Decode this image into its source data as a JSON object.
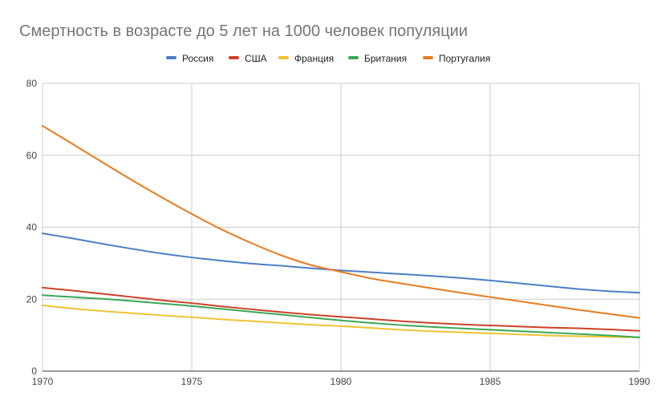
{
  "chart_data": {
    "type": "line",
    "title": "Смертность в возрасте до 5 лет на 1000 человек популяции",
    "xlabel": "",
    "ylabel": "",
    "x": [
      1970,
      1971,
      1972,
      1973,
      1974,
      1975,
      1976,
      1977,
      1978,
      1979,
      1980,
      1981,
      1982,
      1983,
      1984,
      1985,
      1986,
      1987,
      1988,
      1989,
      1990
    ],
    "xticks": [
      "1970",
      "1975",
      "1980",
      "1985",
      "1990"
    ],
    "xtick_values": [
      1970,
      1975,
      1980,
      1985,
      1990
    ],
    "yticks": [
      "0",
      "20",
      "40",
      "60",
      "80"
    ],
    "ytick_values": [
      0,
      20,
      40,
      60,
      80
    ],
    "xlim": [
      1970,
      1990
    ],
    "ylim": [
      0,
      80
    ],
    "grid": true,
    "legend_position": "top",
    "series": [
      {
        "name": "Россия",
        "color": "#4a7ec7",
        "values": [
          38.3,
          36.9,
          35.4,
          34.0,
          32.7,
          31.6,
          30.7,
          29.9,
          29.3,
          28.6,
          28.0,
          27.5,
          27.0,
          26.5,
          25.9,
          25.2,
          24.4,
          23.6,
          22.8,
          22.2,
          21.8
        ]
      },
      {
        "name": "США",
        "color": "#cc4125",
        "values": [
          23.2,
          22.4,
          21.5,
          20.6,
          19.7,
          18.9,
          18.0,
          17.2,
          16.4,
          15.7,
          15.1,
          14.5,
          13.9,
          13.4,
          13.0,
          12.7,
          12.4,
          12.1,
          11.9,
          11.6,
          11.2
        ]
      },
      {
        "name": "Франция",
        "color": "#f1c232",
        "values": [
          18.3,
          17.4,
          16.7,
          16.1,
          15.5,
          15.0,
          14.4,
          13.9,
          13.4,
          12.9,
          12.5,
          12.0,
          11.5,
          11.1,
          10.8,
          10.5,
          10.2,
          9.9,
          9.7,
          9.5,
          9.4
        ]
      },
      {
        "name": "Британия",
        "color": "#3aa757",
        "values": [
          21.1,
          20.6,
          20.1,
          19.5,
          18.8,
          18.1,
          17.3,
          16.5,
          15.7,
          14.9,
          14.1,
          13.4,
          12.8,
          12.3,
          11.9,
          11.5,
          11.1,
          10.7,
          10.3,
          9.9,
          9.4
        ]
      },
      {
        "name": "Португалия",
        "color": "#e67c1f",
        "values": [
          68.2,
          63.2,
          58.1,
          53.1,
          48.3,
          43.7,
          39.4,
          35.6,
          32.2,
          29.5,
          27.6,
          25.8,
          24.4,
          23.1,
          21.8,
          20.6,
          19.4,
          18.2,
          17.0,
          15.9,
          14.8
        ]
      }
    ]
  }
}
